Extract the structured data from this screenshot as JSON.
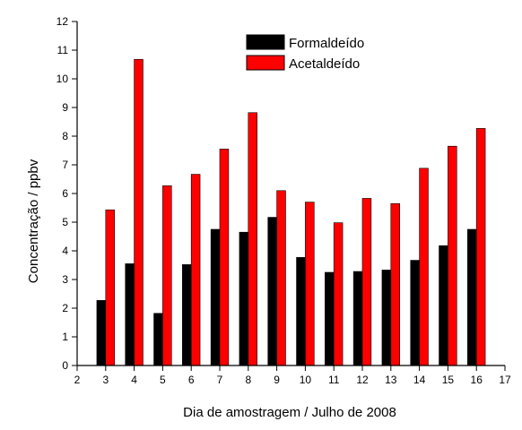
{
  "chart_data": {
    "type": "bar",
    "xlabel": "Dia de amostragem / Julho de 2008",
    "ylabel": "Concentração / ppbv",
    "xlim": [
      2,
      17
    ],
    "ylim": [
      0,
      12
    ],
    "x_ticks": [
      2,
      3,
      4,
      5,
      6,
      7,
      8,
      9,
      10,
      11,
      12,
      13,
      14,
      15,
      16,
      17
    ],
    "y_ticks": [
      0,
      1,
      2,
      3,
      4,
      5,
      6,
      7,
      8,
      9,
      10,
      11,
      12
    ],
    "categories": [
      3,
      4,
      5,
      6,
      7,
      8,
      9,
      10,
      11,
      12,
      13,
      14,
      15,
      16
    ],
    "legend_position": "top-center",
    "series": [
      {
        "name": "Formaldeído",
        "color": "#000000",
        "values": [
          2.27,
          3.55,
          1.82,
          3.52,
          4.75,
          4.65,
          5.17,
          3.77,
          3.25,
          3.28,
          3.33,
          3.67,
          4.18,
          4.75
        ]
      },
      {
        "name": "Acetaldeído",
        "color": "#ff0000",
        "values": [
          5.43,
          10.68,
          6.27,
          6.67,
          7.55,
          8.82,
          6.1,
          5.7,
          4.98,
          5.83,
          5.65,
          6.88,
          7.65,
          8.27
        ]
      }
    ]
  }
}
